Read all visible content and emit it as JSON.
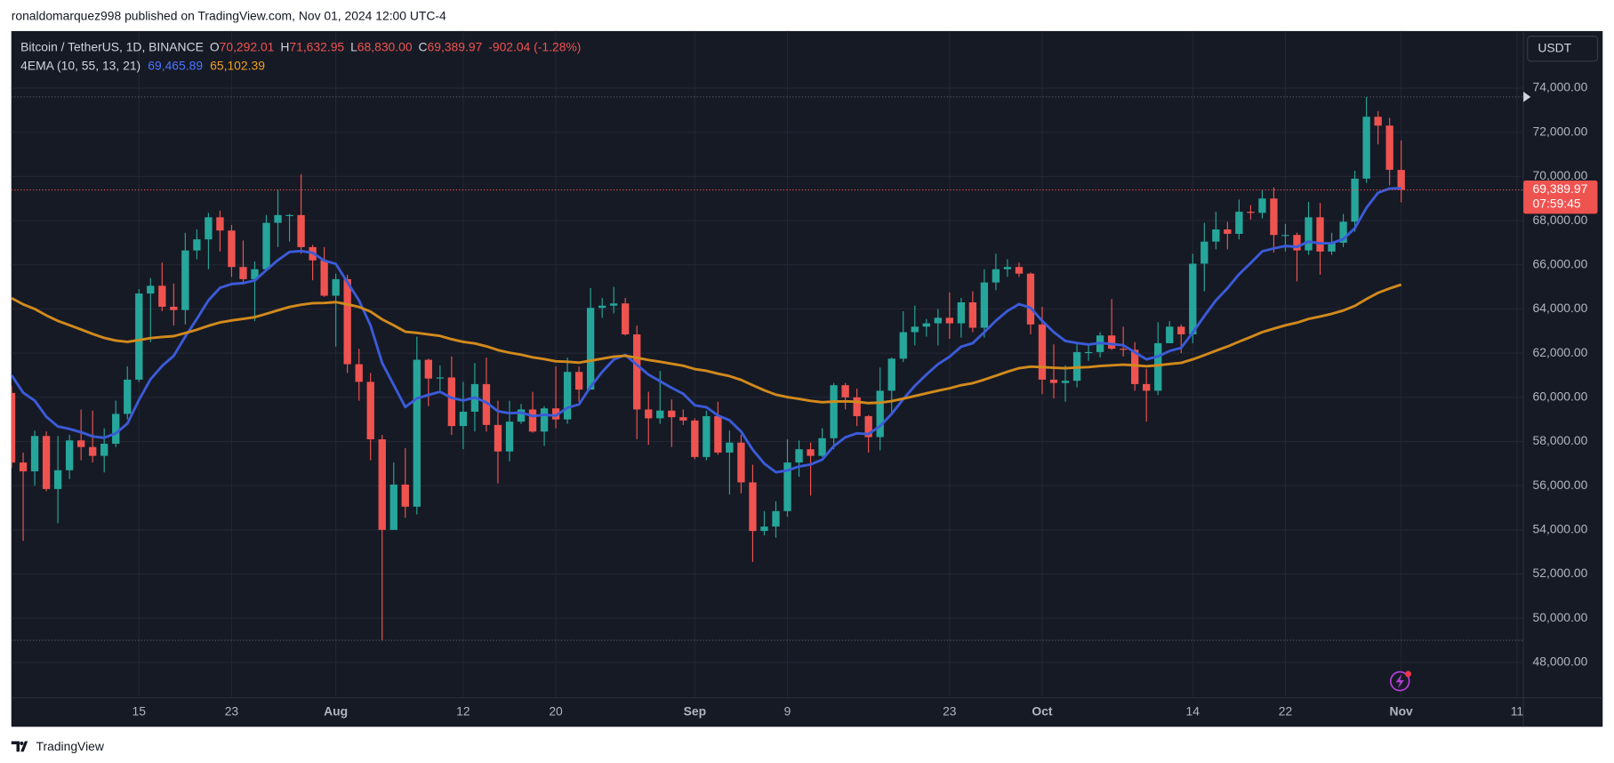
{
  "header": {
    "published": "ronaldomarquez998 published on TradingView.com, Nov 01, 2024 12:00 UTC-4"
  },
  "footer": {
    "brand": "TradingView"
  },
  "chart_data": {
    "type": "candlestick",
    "legend": {
      "symbol": "Bitcoin / TetherUS, 1D, BINANCE",
      "fields": [
        {
          "key": "O",
          "value": "70,292.01"
        },
        {
          "key": "H",
          "value": "71,632.95"
        },
        {
          "key": "L",
          "value": "68,830.00"
        },
        {
          "key": "C",
          "value": "69,389.97"
        }
      ],
      "change": "-902.04 (-1.28%)"
    },
    "indicator": {
      "label": "4EMA (10, 55, 13, 21)",
      "values": [
        "69,465.89",
        "65,102.39"
      ]
    },
    "currency": "USDT",
    "price_label": {
      "value_label": "69,389.97",
      "countdown": "07:59:45"
    },
    "up_color": "#26a69a",
    "down_color": "#ef5350",
    "categories": [
      null,
      null,
      null,
      null,
      null,
      null,
      null,
      null,
      null,
      null,
      null,
      "15",
      null,
      null,
      null,
      null,
      null,
      null,
      null,
      "23",
      null,
      null,
      null,
      null,
      null,
      null,
      null,
      null,
      "Aug",
      null,
      null,
      null,
      null,
      null,
      null,
      null,
      null,
      null,
      null,
      "12",
      null,
      null,
      null,
      null,
      null,
      null,
      null,
      "20",
      null,
      null,
      null,
      null,
      null,
      null,
      null,
      null,
      null,
      null,
      null,
      "Sep",
      null,
      null,
      null,
      null,
      null,
      null,
      null,
      "9",
      null,
      null,
      null,
      null,
      null,
      null,
      null,
      null,
      null,
      null,
      null,
      null,
      null,
      "23",
      null,
      null,
      null,
      null,
      null,
      null,
      null,
      "Oct",
      null,
      null,
      null,
      null,
      null,
      null,
      null,
      null,
      null,
      null,
      null,
      null,
      "14",
      null,
      null,
      null,
      null,
      null,
      null,
      null,
      "22",
      null,
      null,
      null,
      null,
      null,
      null,
      null,
      null,
      null,
      "Nov",
      null,
      null,
      null,
      null,
      null,
      null,
      null,
      null,
      null,
      "11"
    ],
    "candles": [
      [
        60200,
        60500,
        56800,
        57050
      ],
      [
        57050,
        57500,
        53500,
        56650
      ],
      [
        56650,
        58500,
        56000,
        58250
      ],
      [
        58250,
        58450,
        55750,
        55850
      ],
      [
        55850,
        58250,
        54300,
        56700
      ],
      [
        56700,
        58300,
        56300,
        58050
      ],
      [
        58050,
        59450,
        57150,
        57750
      ],
      [
        57750,
        59400,
        57050,
        57350
      ],
      [
        57350,
        58600,
        56600,
        57900
      ],
      [
        57900,
        59850,
        57750,
        59250
      ],
      [
        59250,
        61400,
        59000,
        60800
      ],
      [
        60800,
        64900,
        60700,
        64700
      ],
      [
        64700,
        65400,
        62500,
        65050
      ],
      [
        65050,
        66100,
        63900,
        64100
      ],
      [
        64100,
        65150,
        63250,
        63950
      ],
      [
        63950,
        67450,
        63300,
        66650
      ],
      [
        66650,
        67600,
        66250,
        67150
      ],
      [
        67150,
        68350,
        65800,
        68150
      ],
      [
        68150,
        68450,
        66600,
        67550
      ],
      [
        67550,
        67800,
        65450,
        65900
      ],
      [
        65900,
        67100,
        65100,
        65350
      ],
      [
        65350,
        66150,
        63450,
        65800
      ],
      [
        65800,
        68250,
        65750,
        67900
      ],
      [
        67900,
        69400,
        66800,
        68250
      ],
      [
        68250,
        68300,
        67050,
        68250
      ],
      [
        68250,
        70100,
        66500,
        66800
      ],
      [
        66800,
        66900,
        65300,
        66200
      ],
      [
        66200,
        66800,
        64550,
        64600
      ],
      [
        64600,
        65600,
        62300,
        65350
      ],
      [
        65350,
        65550,
        61100,
        61500
      ],
      [
        61500,
        62200,
        59850,
        60700
      ],
      [
        60700,
        61100,
        57150,
        58100
      ],
      [
        58100,
        58300,
        49000,
        54000
      ],
      [
        54000,
        57050,
        54000,
        56050
      ],
      [
        56050,
        57700,
        54550,
        55050
      ],
      [
        55050,
        62750,
        54700,
        61700
      ],
      [
        61700,
        61750,
        59600,
        60850
      ],
      [
        60850,
        61450,
        60250,
        60900
      ],
      [
        60900,
        61850,
        58300,
        58700
      ],
      [
        58700,
        60700,
        57650,
        59350
      ],
      [
        59350,
        61550,
        58450,
        60600
      ],
      [
        60600,
        61800,
        58450,
        58750
      ],
      [
        58750,
        59850,
        56100,
        57550
      ],
      [
        57550,
        59850,
        57100,
        58900
      ],
      [
        58900,
        59700,
        58800,
        59450
      ],
      [
        59450,
        60250,
        58400,
        58450
      ],
      [
        58450,
        59600,
        57800,
        59500
      ],
      [
        59500,
        61400,
        58600,
        59000
      ],
      [
        59000,
        61800,
        58800,
        61150
      ],
      [
        61150,
        61400,
        59800,
        60350
      ],
      [
        60350,
        64950,
        60350,
        64050
      ],
      [
        64050,
        64500,
        63600,
        64150
      ],
      [
        64150,
        65000,
        63800,
        64250
      ],
      [
        64250,
        64500,
        62800,
        62850
      ],
      [
        62850,
        63250,
        58100,
        59450
      ],
      [
        59450,
        60250,
        57850,
        59050
      ],
      [
        59050,
        61200,
        58800,
        59400
      ],
      [
        59400,
        59900,
        57750,
        59100
      ],
      [
        59100,
        59450,
        58750,
        58950
      ],
      [
        58950,
        59050,
        57200,
        57300
      ],
      [
        57300,
        59400,
        57150,
        59150
      ],
      [
        59150,
        59800,
        57400,
        57500
      ],
      [
        57500,
        58500,
        55600,
        57950
      ],
      [
        57950,
        58300,
        55650,
        56150
      ],
      [
        56150,
        56950,
        52550,
        53950
      ],
      [
        53950,
        54850,
        53750,
        54150
      ],
      [
        54150,
        55300,
        53650,
        54850
      ],
      [
        54850,
        58100,
        54600,
        57050
      ],
      [
        57050,
        58050,
        56400,
        57650
      ],
      [
        57650,
        57950,
        55550,
        57350
      ],
      [
        57350,
        58600,
        57300,
        58150
      ],
      [
        58150,
        60650,
        57650,
        60550
      ],
      [
        60550,
        60650,
        59450,
        60000
      ],
      [
        60000,
        60400,
        58700,
        59150
      ],
      [
        59150,
        59200,
        57500,
        58200
      ],
      [
        58200,
        61350,
        57600,
        60300
      ],
      [
        60300,
        61800,
        59200,
        61750
      ],
      [
        61750,
        63900,
        61600,
        62950
      ],
      [
        62950,
        64150,
        62350,
        63200
      ],
      [
        63200,
        63550,
        62750,
        63350
      ],
      [
        63350,
        64000,
        62350,
        63600
      ],
      [
        63600,
        64750,
        62650,
        63350
      ],
      [
        63350,
        64500,
        62700,
        64300
      ],
      [
        64300,
        64800,
        62950,
        63150
      ],
      [
        63150,
        65800,
        62700,
        65200
      ],
      [
        65200,
        66500,
        64850,
        65800
      ],
      [
        65800,
        66250,
        65450,
        65900
      ],
      [
        65900,
        66100,
        65450,
        65600
      ],
      [
        65600,
        65650,
        62850,
        63300
      ],
      [
        63300,
        64100,
        60150,
        60800
      ],
      [
        60800,
        62400,
        59950,
        60650
      ],
      [
        60650,
        61450,
        59800,
        60750
      ],
      [
        60750,
        62500,
        60450,
        62050
      ],
      [
        62050,
        62350,
        61650,
        62050
      ],
      [
        62050,
        62950,
        61800,
        62800
      ],
      [
        62800,
        64450,
        62150,
        62200
      ],
      [
        62200,
        63200,
        61850,
        62150
      ],
      [
        62150,
        62500,
        60300,
        60600
      ],
      [
        60600,
        61300,
        58900,
        60300
      ],
      [
        60300,
        63400,
        60100,
        62450
      ],
      [
        62450,
        63450,
        62450,
        63200
      ],
      [
        63200,
        63300,
        62000,
        62850
      ],
      [
        62850,
        66500,
        62450,
        66050
      ],
      [
        66050,
        67900,
        64800,
        67050
      ],
      [
        67050,
        68400,
        66700,
        67600
      ],
      [
        67600,
        67950,
        66700,
        67400
      ],
      [
        67400,
        68950,
        67150,
        68400
      ],
      [
        68400,
        68700,
        68050,
        68350
      ],
      [
        68350,
        69400,
        68100,
        69000
      ],
      [
        69000,
        69500,
        66550,
        67350
      ],
      [
        67350,
        67850,
        66600,
        67350
      ],
      [
        67350,
        67450,
        65250,
        66650
      ],
      [
        66650,
        68850,
        66450,
        68150
      ],
      [
        68150,
        68800,
        65550,
        66600
      ],
      [
        66600,
        67450,
        66450,
        67000
      ],
      [
        67000,
        68300,
        66800,
        67950
      ],
      [
        67950,
        70250,
        67500,
        69900
      ],
      [
        69900,
        73600,
        69700,
        72700
      ],
      [
        72700,
        72950,
        71450,
        72300
      ],
      [
        72300,
        72650,
        69600,
        70300
      ],
      [
        70292.01,
        71632.95,
        68830,
        69389.97
      ],
      null,
      null,
      null,
      null,
      null,
      null,
      null,
      null,
      null,
      null
    ],
    "overlays": [
      {
        "color": "#3b5bd9",
        "values": [
          61000,
          60210,
          59850,
          59120,
          58680,
          58570,
          58420,
          58230,
          58170,
          58370,
          58810,
          59880,
          60820,
          61420,
          61880,
          62750,
          63550,
          64390,
          64960,
          65130,
          65170,
          65290,
          65760,
          66210,
          66580,
          66620,
          66540,
          66190,
          66040,
          65210,
          64390,
          63250,
          61560,
          60560,
          59560,
          59950,
          60110,
          60250,
          59970,
          59860,
          59990,
          59770,
          59370,
          59280,
          59310,
          59150,
          59210,
          59170,
          59530,
          59680,
          60480,
          61150,
          61710,
          61920,
          61470,
          61030,
          60730,
          60430,
          60160,
          59640,
          59550,
          59180,
          58960,
          58450,
          57630,
          57000,
          56610,
          56690,
          56870,
          56960,
          57180,
          57790,
          58190,
          58370,
          58340,
          58700,
          59250,
          59920,
          60520,
          61030,
          61500,
          61840,
          62290,
          62450,
          62950,
          63470,
          63910,
          64220,
          64050,
          63460,
          62950,
          62550,
          62460,
          62390,
          62460,
          62410,
          62360,
          62040,
          61720,
          61850,
          62100,
          62240,
          62930,
          63680,
          64390,
          64940,
          65570,
          66080,
          66610,
          66740,
          66850,
          66810,
          67050,
          66970,
          66980,
          67160,
          67660,
          68580,
          69260,
          69450,
          69465.89,
          null,
          null,
          null,
          null,
          null,
          null,
          null,
          null,
          null,
          null
        ]
      },
      {
        "color": "#d18a1c",
        "values": [
          64490,
          64210,
          64000,
          63710,
          63460,
          63270,
          63070,
          62870,
          62690,
          62570,
          62510,
          62590,
          62680,
          62730,
          62770,
          62910,
          63060,
          63240,
          63390,
          63480,
          63550,
          63630,
          63780,
          63940,
          64090,
          64190,
          64260,
          64270,
          64310,
          64210,
          64090,
          63880,
          63530,
          63260,
          62970,
          62920,
          62850,
          62780,
          62630,
          62510,
          62440,
          62310,
          62140,
          62020,
          61930,
          61810,
          61730,
          61630,
          61610,
          61570,
          61660,
          61750,
          61840,
          61880,
          61790,
          61690,
          61610,
          61520,
          61430,
          61280,
          61200,
          61070,
          60960,
          60790,
          60550,
          60320,
          60120,
          60010,
          59930,
          59840,
          59780,
          59810,
          59820,
          59800,
          59740,
          59760,
          59830,
          59940,
          60060,
          60180,
          60300,
          60410,
          60550,
          60640,
          60800,
          60980,
          61160,
          61320,
          61390,
          61370,
          61340,
          61320,
          61350,
          61370,
          61420,
          61450,
          61480,
          61450,
          61410,
          61450,
          61510,
          61560,
          61720,
          61910,
          62110,
          62300,
          62520,
          62730,
          62950,
          63110,
          63260,
          63380,
          63550,
          63660,
          63780,
          63930,
          64140,
          64450,
          64730,
          64930,
          65102.39,
          null,
          null,
          null,
          null,
          null,
          null,
          null,
          null,
          null,
          null
        ]
      }
    ],
    "ylim": [
      46400,
      76580
    ],
    "yticks": [
      {
        "value": 48000,
        "label": "48,000.00"
      },
      {
        "value": 50000,
        "label": "50,000.00"
      },
      {
        "value": 52000,
        "label": "52,000.00"
      },
      {
        "value": 54000,
        "label": "54,000.00"
      },
      {
        "value": 56000,
        "label": "56,000.00"
      },
      {
        "value": 58000,
        "label": "58,000.00"
      },
      {
        "value": 60000,
        "label": "60,000.00"
      },
      {
        "value": 62000,
        "label": "62,000.00"
      },
      {
        "value": 64000,
        "label": "64,000.00"
      },
      {
        "value": 66000,
        "label": "66,000.00"
      },
      {
        "value": 68000,
        "label": "68,000.00"
      },
      {
        "value": 70000,
        "label": "70,000.00"
      },
      {
        "value": 72000,
        "label": "72,000.00"
      },
      {
        "value": 74000,
        "label": "74,000.00"
      }
    ],
    "grid": true
  }
}
